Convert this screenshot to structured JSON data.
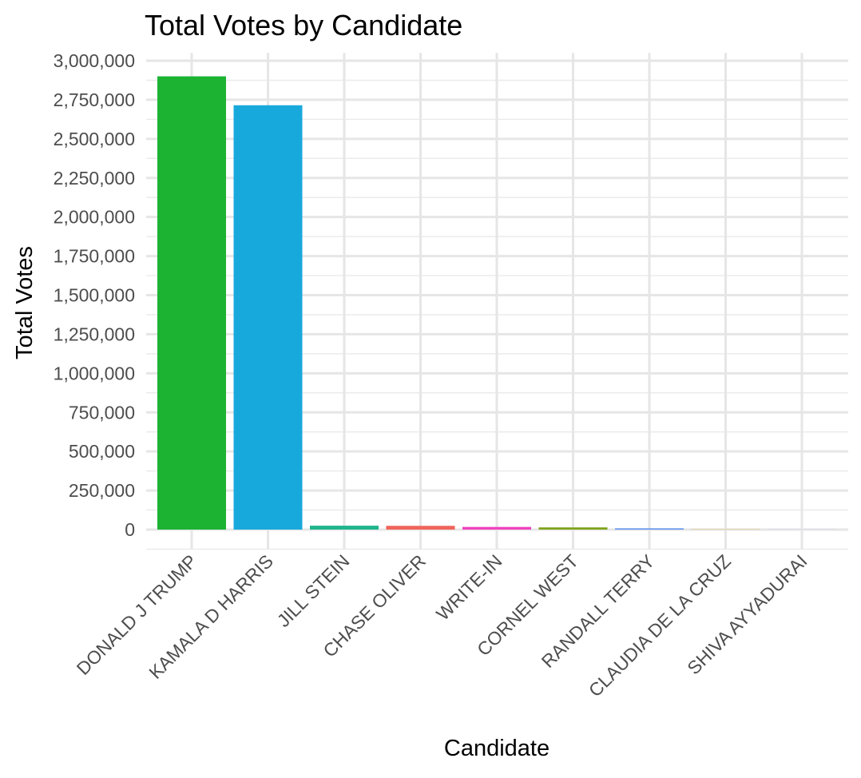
{
  "chart_data": {
    "type": "bar",
    "title": "Total Votes by Candidate",
    "xlabel": "Candidate",
    "ylabel": "Total Votes",
    "categories": [
      "DONALD J TRUMP",
      "KAMALA D HARRIS",
      "JILL STEIN",
      "CHASE OLIVER",
      "WRITE-IN",
      "CORNEL WEST",
      "RANDALL TERRY",
      "CLAUDIA DE LA CRUZ",
      "SHIVA AYYADURAI"
    ],
    "values": [
      2900000,
      2715000,
      25000,
      24000,
      17000,
      14000,
      8000,
      1500,
      500
    ],
    "colors": [
      "#1CB333",
      "#18A9DC",
      "#1FB58D",
      "#F0635A",
      "#F042BE",
      "#7FA218",
      "#5E91F0",
      "#C9A51C",
      "#A679F5"
    ],
    "ylim": [
      -125000,
      3050000
    ],
    "yticks": [
      0,
      250000,
      500000,
      750000,
      1000000,
      1250000,
      1500000,
      1750000,
      2000000,
      2250000,
      2500000,
      2750000,
      3000000
    ],
    "ytick_labels": [
      "0",
      "250,000",
      "500,000",
      "750,000",
      "1,000,000",
      "1,250,000",
      "1,500,000",
      "1,750,000",
      "2,000,000",
      "2,250,000",
      "2,500,000",
      "2,750,000",
      "3,000,000"
    ],
    "grid": true,
    "legend": "none"
  }
}
